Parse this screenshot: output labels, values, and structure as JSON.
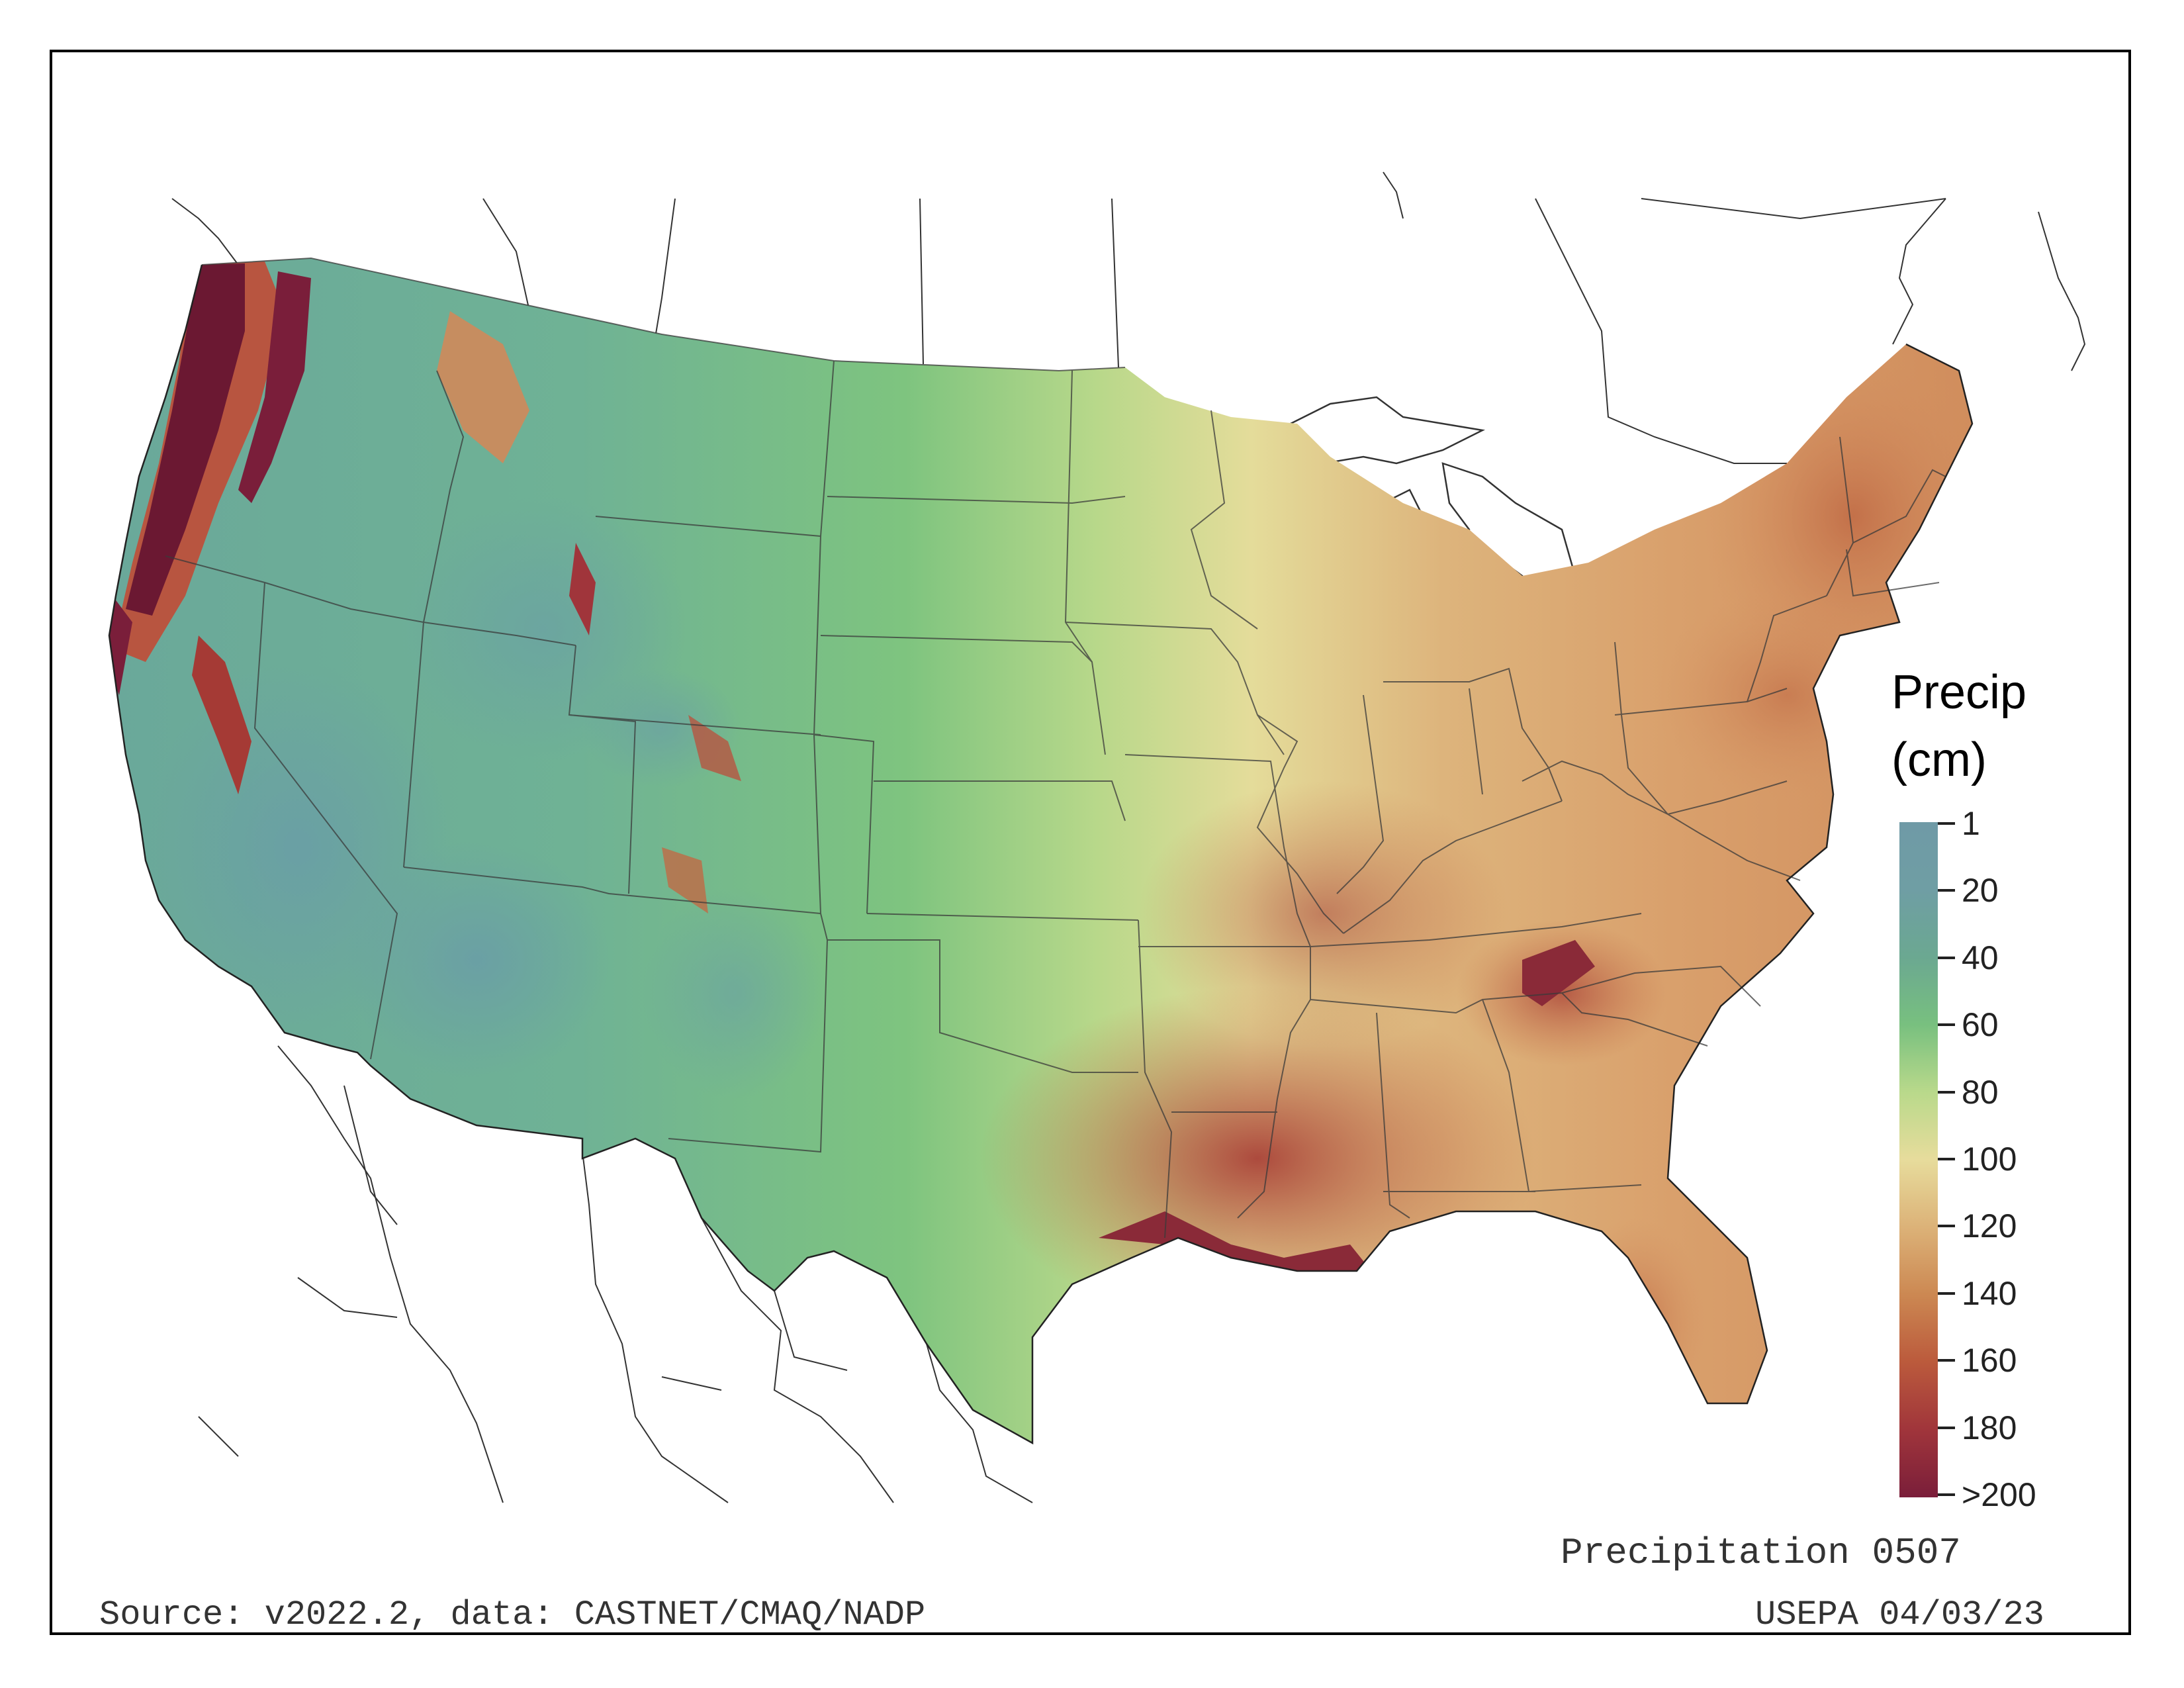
{
  "legend": {
    "title_line1": "Precip",
    "title_line2": "(cm)",
    "ticks": [
      "1",
      "20",
      "40",
      "60",
      "80",
      "100",
      "120",
      "140",
      "160",
      "180",
      ">200"
    ]
  },
  "map_title": "Precipitation 0507",
  "source": "Source: v2022.2, data: CASTNET/CMAQ/NADP",
  "agency": "USEPA 04/03/23",
  "colors": {
    "low": "#6f9aa6",
    "mid_low": "#78c07f",
    "mid": "#e7dc9c",
    "mid_high": "#cc8852",
    "high": "#7a1e3a"
  }
}
